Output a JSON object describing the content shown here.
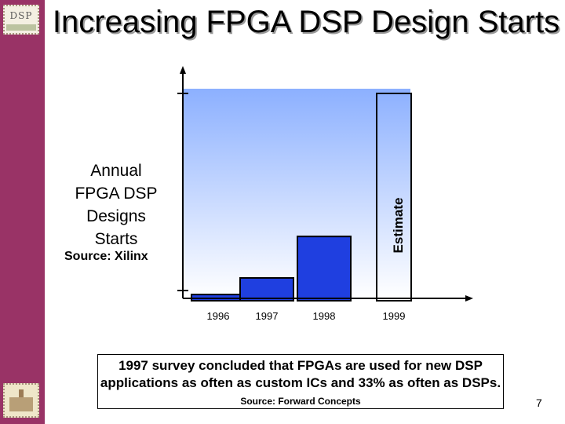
{
  "title": "Increasing FPGA DSP Design Starts",
  "logo_text": "DSP",
  "y_label_lines": [
    "Annual",
    "FPGA DSP",
    "Designs",
    "Starts"
  ],
  "source": "Source: Xilinx",
  "estimate_label": "Estimate",
  "note": {
    "text": "1997 survey concluded that FPGAs are used for new DSP applications as often as custom ICs and 33% as often as DSPs.",
    "source": "Source: Forward Concepts"
  },
  "page_number": "7",
  "colors": {
    "sidebar": "#993366",
    "bar": "#1f3fe0",
    "plot_top": "#8cb0ff",
    "plot_bottom": "#ffffff"
  },
  "chart_data": {
    "type": "bar",
    "categories": [
      "1996",
      "1997",
      "1998",
      "1999"
    ],
    "values": [
      3,
      11,
      31,
      100
    ],
    "estimated": [
      false,
      false,
      false,
      true
    ],
    "ylim": [
      0,
      100
    ],
    "grid": false
  }
}
